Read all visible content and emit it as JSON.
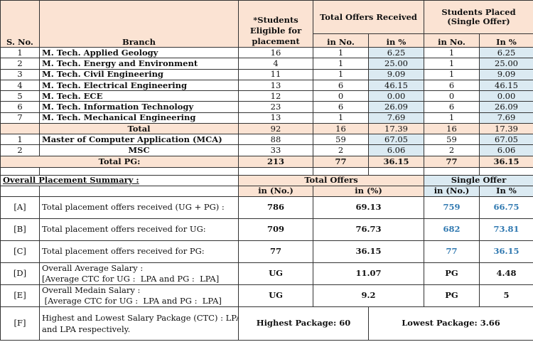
{
  "header": {
    "sno": "S. No.",
    "branch": "Branch",
    "eligible": "*Students Eligible for placement",
    "offers": "Total Offers Received",
    "placed": "Students Placed (Single Offer)",
    "in_no": "in No.",
    "in_pct": "in %",
    "in_no2": "in No.",
    "in_pct2": "In %"
  },
  "rows": [
    {
      "sno": "1",
      "branch": "M. Tech. Applied Geology",
      "eligible": "16",
      "offers_no": "1",
      "offers_pct": "6.25",
      "placed_no": "1",
      "placed_pct": "6.25"
    },
    {
      "sno": "2",
      "branch": "M. Tech. Energy and Environment",
      "eligible": "4",
      "offers_no": "1",
      "offers_pct": "25.00",
      "placed_no": "1",
      "placed_pct": "25.00"
    },
    {
      "sno": "3",
      "branch": "M. Tech. Civil Engineering",
      "eligible": "11",
      "offers_no": "1",
      "offers_pct": "9.09",
      "placed_no": "1",
      "placed_pct": "9.09"
    },
    {
      "sno": "4",
      "branch": "M. Tech. Electrical Engineering",
      "eligible": "13",
      "offers_no": "6",
      "offers_pct": "46.15",
      "placed_no": "6",
      "placed_pct": "46.15"
    },
    {
      "sno": "5",
      "branch": "M. Tech. ECE",
      "eligible": "12",
      "offers_no": "0",
      "offers_pct": "0.00",
      "placed_no": "0",
      "placed_pct": "0.00"
    },
    {
      "sno": "6",
      "branch": "M. Tech. Information Technology",
      "eligible": "23",
      "offers_no": "6",
      "offers_pct": "26.09",
      "placed_no": "6",
      "placed_pct": "26.09"
    },
    {
      "sno": "7",
      "branch": "M. Tech. Mechanical Engineering",
      "eligible": "13",
      "offers_no": "1",
      "offers_pct": "7.69",
      "placed_no": "1",
      "placed_pct": "7.69"
    }
  ],
  "total": {
    "label": "Total",
    "eligible": "92",
    "offers_no": "16",
    "offers_pct": "17.39",
    "placed_no": "16",
    "placed_pct": "17.39"
  },
  "rows2": [
    {
      "sno": "1",
      "branch": "Master of Computer Application (MCA)",
      "eligible": "88",
      "offers_no": "59",
      "offers_pct": "67.05",
      "placed_no": "59",
      "placed_pct": "67.05"
    },
    {
      "sno": "2",
      "branch": "MSC",
      "eligible": "33",
      "offers_no": "2",
      "offers_pct": "6.06",
      "placed_no": "2",
      "placed_pct": "6.06"
    }
  ],
  "total_pg": {
    "label": "Total PG:",
    "eligible": "213",
    "offers_no": "77",
    "offers_pct": "36.15",
    "placed_no": "77",
    "placed_pct": "36.15"
  },
  "summary": {
    "title": "Overall Placement Summary :",
    "total_offers": "Total Offers",
    "single_offer": "Single Offer",
    "in_no": "in (No.)",
    "in_pct": "in (%)",
    "in_no2": "in (No.)",
    "in_pct2": "In %",
    "rows": [
      {
        "id": "[A]",
        "label": "Total placement offers received (UG + PG) :",
        "v1": "786",
        "v2": "69.13",
        "v3": "759",
        "v4": "66.75"
      },
      {
        "id": "[B]",
        "label": "Total placement offers received for UG:",
        "v1": "709",
        "v2": "76.73",
        "v3": "682",
        "v4": "73.81"
      },
      {
        "id": "[C]",
        "label": "Total placement offers received for PG:",
        "v1": "77",
        "v2": "36.15",
        "v3": "77",
        "v4": "36.15"
      },
      {
        "id": "[D]",
        "label1": "Overall Average Salary  :",
        "label2": "[Average CTC for UG :  LPA and PG :  LPA]",
        "v1": "UG",
        "v2": "11.07",
        "v3": "PG",
        "v4": "4.48"
      },
      {
        "id": "[E]",
        "label1": "Overall Medain Salary  :",
        "label2": " [Average CTC for UG :  LPA and PG :  LPA]",
        "v1": "UG",
        "v2": "9.2",
        "v3": "PG",
        "v4": "5"
      }
    ],
    "f": {
      "id": "[F]",
      "label1": "Highest and Lowest Salary Package (CTC) :  LPA",
      "label2": "and   LPA respectively.",
      "highest": "Highest Package: 60",
      "lowest": "Lowest Package: 3.66"
    }
  }
}
